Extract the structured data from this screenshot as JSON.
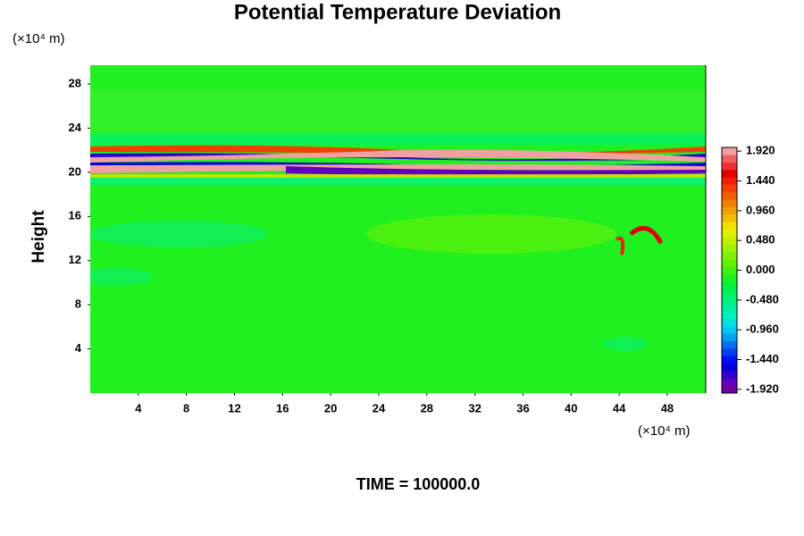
{
  "chart_data": {
    "type": "contour",
    "title": "Potential Temperature Deviation",
    "ylabel": "Height",
    "y_unit": "(×10⁴ m)",
    "x_unit": "(×10⁴ m)",
    "footer": "TIME = 100000.0",
    "xlim": [
      0,
      51.2
    ],
    "ylim": [
      0,
      29.7
    ],
    "xticks": [
      4,
      8,
      12,
      16,
      20,
      24,
      28,
      32,
      36,
      40,
      44,
      48
    ],
    "yticks": [
      4,
      8,
      12,
      16,
      20,
      24,
      28
    ],
    "field_color": "#20f020",
    "colorbar": {
      "lim": [
        -1.98,
        1.98
      ],
      "colors": [
        "#7000a0",
        "#6000c0",
        "#3000d0",
        "#0000e0",
        "#0010f0",
        "#0040f0",
        "#0070f0",
        "#00a0f0",
        "#00c8f0",
        "#00e0e0",
        "#00f0c0",
        "#00f0a0",
        "#00f080",
        "#00f060",
        "#00f040",
        "#20f020",
        "#40f010",
        "#60f000",
        "#80f000",
        "#a0f000",
        "#c0f000",
        "#e0f000",
        "#f0e000",
        "#f0c000",
        "#f0a000",
        "#f08000",
        "#f06000",
        "#f04000",
        "#f02000",
        "#e00000",
        "#f03030",
        "#f06060",
        "#f0a0a0"
      ],
      "ticks": [
        {
          "value": 1.92,
          "label": "1.920"
        },
        {
          "value": 1.44,
          "label": "1.440"
        },
        {
          "value": 0.96,
          "label": "0.960"
        },
        {
          "value": 0.48,
          "label": "0.480"
        },
        {
          "value": 0,
          "label": "0.000"
        },
        {
          "value": -0.48,
          "label": "-0.480"
        },
        {
          "value": -0.96,
          "label": "-0.960"
        },
        {
          "value": -1.44,
          "label": "-1.440"
        },
        {
          "value": -1.92,
          "label": "-1.920"
        }
      ]
    }
  }
}
